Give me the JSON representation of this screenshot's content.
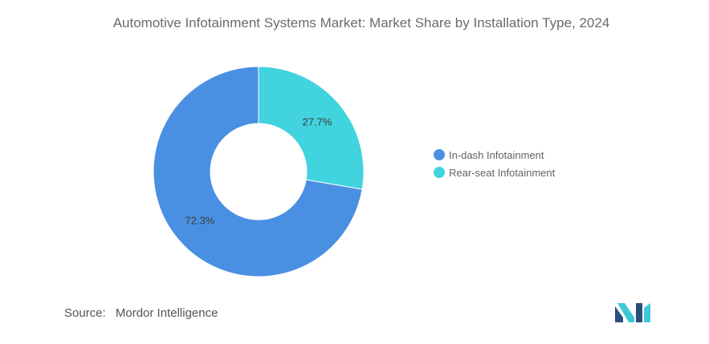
{
  "chart_data": {
    "type": "pie",
    "title": "Automotive Infotainment Systems Market: Market Share by Installation Type, 2024",
    "categories": [
      "In-dash Infotainment",
      "Rear-seat Infotainment"
    ],
    "values": [
      72.3,
      27.7
    ],
    "value_labels": [
      "72.3%",
      "27.7%"
    ],
    "colors": [
      "#4a90e2",
      "#41d3de"
    ],
    "donut": true,
    "legend_position": "right"
  },
  "source": {
    "label": "Source:",
    "name": "Mordor Intelligence"
  },
  "logo": {
    "icon": "mordor-intelligence-logo-icon",
    "colors": [
      "#2b4f7a",
      "#3ec8d6"
    ]
  }
}
